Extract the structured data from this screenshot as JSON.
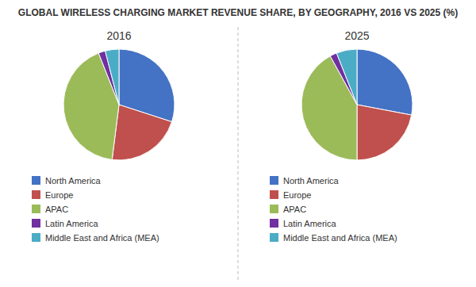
{
  "title": "GLOBAL WIRELESS CHARGING MARKET REVENUE SHARE, BY GEOGRAPHY, 2016 VS 2025 (%)",
  "chart_data": [
    {
      "type": "pie",
      "title": "2016",
      "categories": [
        "North America",
        "Europe",
        "APAC",
        "Latin America",
        "Middle East and Africa (MEA)"
      ],
      "values": [
        30,
        22,
        42,
        2,
        4
      ],
      "colors": [
        "#4472C4",
        "#C0504D",
        "#9BBB59",
        "#7030A0",
        "#4BACC6"
      ],
      "legend": "bottom"
    },
    {
      "type": "pie",
      "title": "2025",
      "categories": [
        "North America",
        "Europe",
        "APAC",
        "Latin America",
        "Middle East and Africa (MEA)"
      ],
      "values": [
        28,
        22,
        42,
        2,
        6
      ],
      "colors": [
        "#4472C4",
        "#C0504D",
        "#9BBB59",
        "#7030A0",
        "#4BACC6"
      ],
      "legend": "bottom"
    }
  ]
}
